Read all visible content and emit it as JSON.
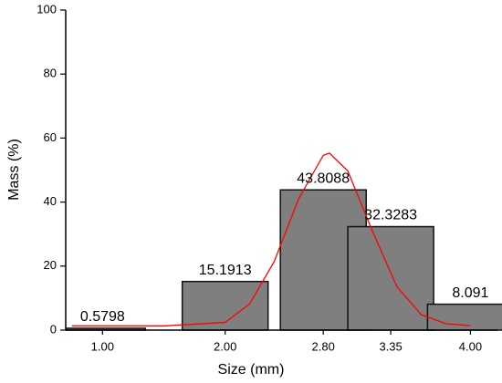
{
  "chart_data": {
    "type": "bar",
    "x_label": "Size (mm)",
    "y_label": "Mass (%)",
    "x": [
      1,
      2,
      2.8,
      3.35,
      4
    ],
    "values": [
      0.5798,
      15.1913,
      43.8088,
      32.3283,
      8.091
    ],
    "color": "#7f7f7f",
    "xlim": [
      0.7,
      4.22
    ],
    "xticks": [
      {
        "value": 1,
        "label": "1.00"
      },
      {
        "value": 2,
        "label": "2.00"
      },
      {
        "value": 2.8,
        "label": "2.80"
      },
      {
        "value": 3.35,
        "label": "3.35"
      },
      {
        "value": 4,
        "label": "4.00"
      }
    ],
    "ylim": [
      0,
      100
    ],
    "yticks": [
      0,
      20,
      40,
      60,
      80,
      100
    ],
    "fit": {
      "type": "line",
      "color": "#ff0000",
      "x": [
        0.75,
        1.5,
        2.0,
        2.2,
        2.4,
        2.6,
        2.8,
        2.85,
        3.0,
        3.2,
        3.4,
        3.6,
        3.8,
        4.0
      ],
      "values": [
        1.3,
        1.3,
        2.4,
        8.2,
        21.4,
        41.1,
        54.6,
        55.3,
        49.7,
        31,
        13.6,
        4.8,
        2.0,
        1.4
      ]
    }
  }
}
